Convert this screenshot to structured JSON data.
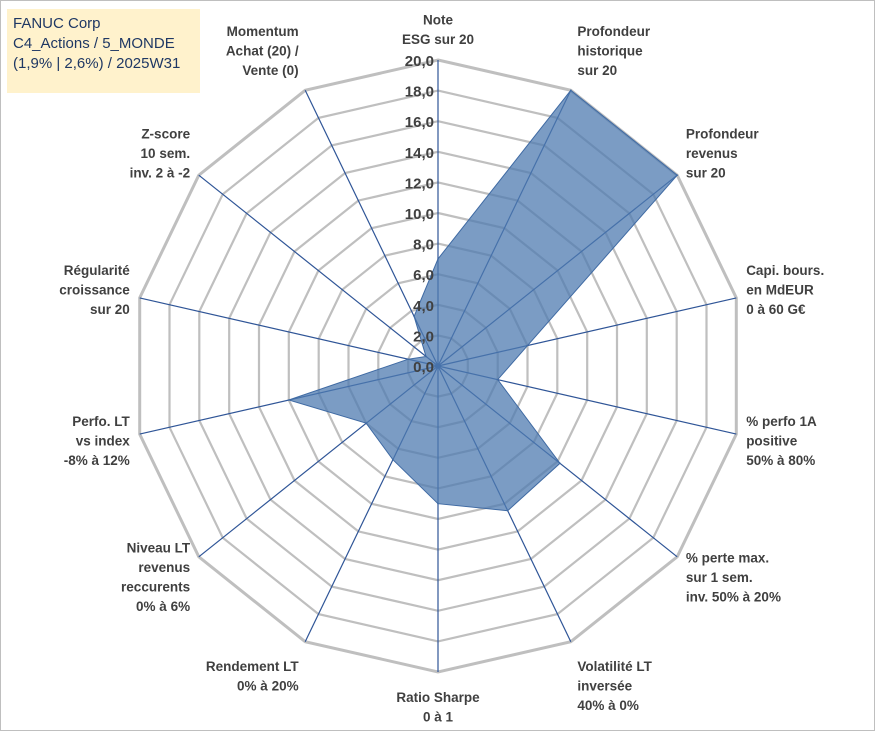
{
  "info_box": {
    "line1": "FANUC Corp",
    "line2": "C4_Actions / 5_MONDE",
    "line3": "(1,9% | 2,6%) / 2025W31"
  },
  "colors": {
    "grid": "#bfbfbf",
    "spoke": "#2f5597",
    "fill": "#4f7bb0",
    "fill_opacity": 0.75,
    "outline": "#3f6aa3",
    "label": "#404040",
    "info_bg": "#fff2cc",
    "info_text": "#1f3864"
  },
  "chart_data": {
    "type": "radar",
    "rmin": 0,
    "rmax": 20,
    "tick_step": 2,
    "tick_labels": [
      "0,0",
      "2,0",
      "4,0",
      "6,0",
      "8,0",
      "10,0",
      "12,0",
      "14,0",
      "16,0",
      "18,0",
      "20,0"
    ],
    "grid": true,
    "axes": [
      {
        "label": [
          "Note",
          "ESG sur 20"
        ],
        "value": 7.0
      },
      {
        "label": [
          "Profondeur",
          "historique",
          "sur 20"
        ],
        "value": 20.0
      },
      {
        "label": [
          "Profondeur",
          "revenus",
          "sur 20"
        ],
        "value": 20.0
      },
      {
        "label": [
          "Capi. bours.",
          "en MdEUR",
          "0 à 60 G€"
        ],
        "value": 6.0
      },
      {
        "label": [
          "% perfo 1A",
          "positive",
          "50% à 80%"
        ],
        "value": 4.0
      },
      {
        "label": [
          "% perte max.",
          "sur 1 sem.",
          "inv. 50% à 20%"
        ],
        "value": 10.2
      },
      {
        "label": [
          "Volatilité LT",
          "inversée",
          "40% à 0%"
        ],
        "value": 10.5
      },
      {
        "label": [
          "Ratio Sharpe",
          "0 à 1"
        ],
        "value": 9.0
      },
      {
        "label": [
          "Rendement LT",
          "0% à 20%"
        ],
        "value": 6.8
      },
      {
        "label": [
          "Niveau LT",
          "revenus",
          "reccurents",
          "0% à 6%"
        ],
        "value": 6.0
      },
      {
        "label": [
          "Perfo. LT",
          "vs index",
          "-8% à 12%"
        ],
        "value": 10.0
      },
      {
        "label": [
          "Régularité",
          "croissance",
          "sur 20"
        ],
        "value": 2.0
      },
      {
        "label": [
          "Z-score",
          "10 sem.",
          "inv. 2 à -2"
        ],
        "value": 1.0
      },
      {
        "label": [
          "Momentum",
          "Achat (20) /",
          "Vente (0)"
        ],
        "value": 3.6
      }
    ]
  }
}
